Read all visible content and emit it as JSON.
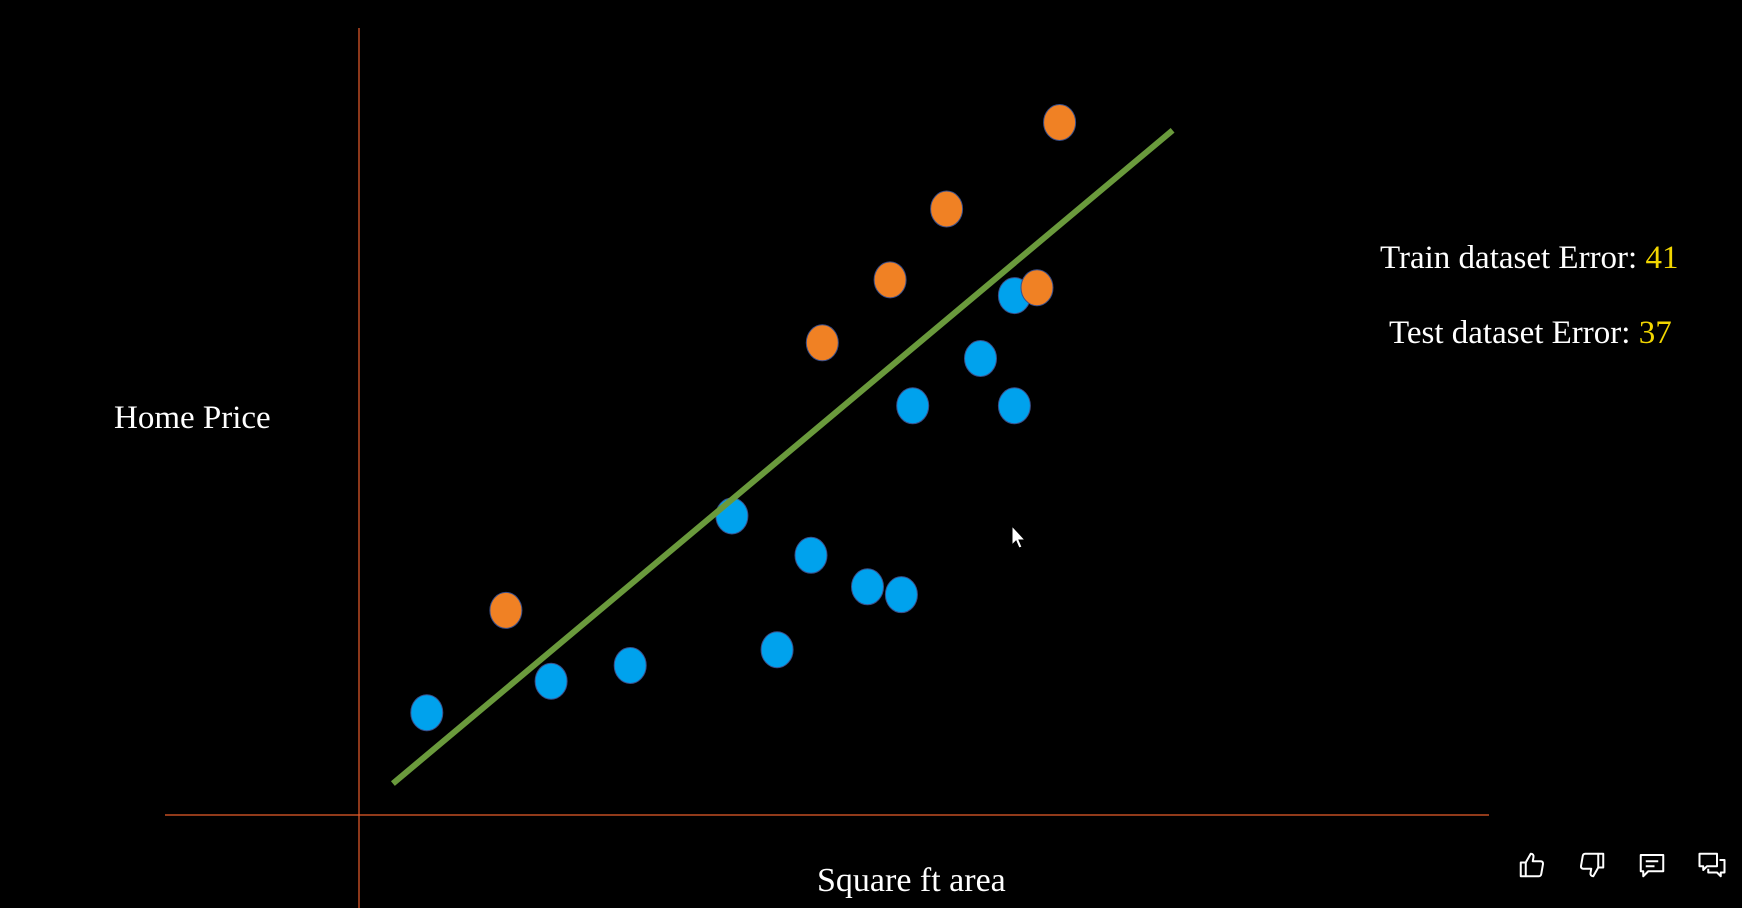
{
  "chart_data": {
    "type": "scatter",
    "xlabel": "Square ft area",
    "ylabel": "Home Price",
    "xlim": [
      0,
      100
    ],
    "ylim": [
      0,
      100
    ],
    "grid": false,
    "series": [
      {
        "color": "#00a2ed",
        "points": [
          [
            6,
            13
          ],
          [
            17,
            17
          ],
          [
            24,
            19
          ],
          [
            33,
            38
          ],
          [
            37,
            21
          ],
          [
            40,
            33
          ],
          [
            45,
            29
          ],
          [
            48,
            28
          ],
          [
            49,
            52
          ],
          [
            55,
            58
          ],
          [
            58,
            66
          ],
          [
            58,
            52
          ]
        ]
      },
      {
        "color": "#f08124",
        "points": [
          [
            13,
            26
          ],
          [
            41,
            60
          ],
          [
            47,
            68
          ],
          [
            52,
            77
          ],
          [
            62,
            88
          ],
          [
            60,
            67
          ]
        ]
      }
    ],
    "fit_line": {
      "color": "#6a9a3c",
      "start": [
        3,
        4
      ],
      "end": [
        72,
        87
      ]
    },
    "axis_color": "#e85c2b"
  },
  "metrics": {
    "train": {
      "label": "Train dataset Error:",
      "value": "41"
    },
    "test": {
      "label": "Test dataset Error:",
      "value": "37"
    }
  },
  "toolbar": {
    "icons": [
      "thumbs-up-icon",
      "thumbs-down-icon",
      "comment-icon",
      "conversation-icon"
    ]
  }
}
